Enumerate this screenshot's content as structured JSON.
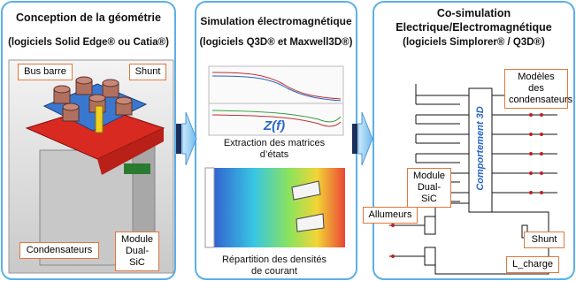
{
  "panels": [
    {
      "title": "Conception de la géométrie",
      "subtitle": "(logiciels Solid Edge® ou Catia®)",
      "labels": [
        "Bus barre",
        "Shunt",
        "Condensateurs",
        "Module Dual-SiC"
      ]
    },
    {
      "title": "Simulation électromagnétique",
      "subtitle": "(logiciels Q3D® et Maxwell3D®)",
      "plot_label": "Z(f)",
      "captions": [
        "Extraction des matrices d’états",
        "Répartition des densités de courant"
      ]
    },
    {
      "title": "Co-simulation",
      "subtitle": "Electrique/Electromagnétique",
      "subtitle2": "(logiciels Simplorer® / Q3D®)",
      "block_label": "Comportement 3D",
      "labels": [
        "Modèles des condensateurs",
        "Module Dual-SiC",
        "Allumeurs",
        "Shunt",
        "L_charge"
      ]
    }
  ]
}
